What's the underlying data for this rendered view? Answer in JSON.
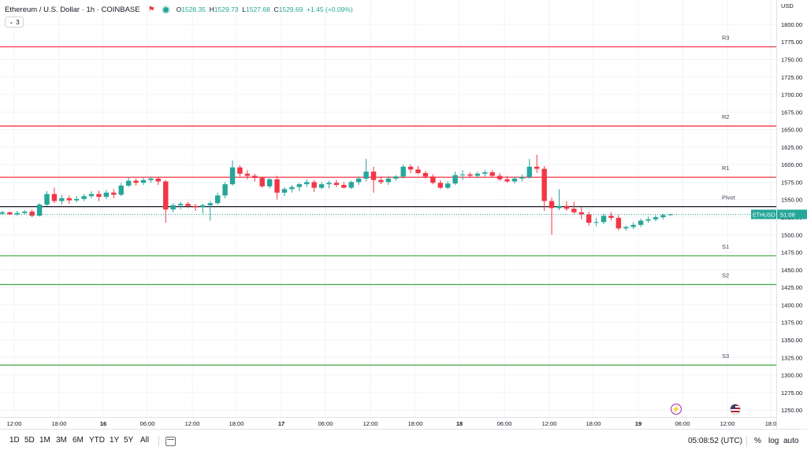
{
  "header": {
    "title": "Ethereum / U.S. Dollar · 1h · COINBASE",
    "ohlc": [
      {
        "k": "O",
        "v": "1528.35"
      },
      {
        "k": "H",
        "v": "1529.73"
      },
      {
        "k": "L",
        "v": "1527.68"
      },
      {
        "k": "C",
        "v": "1529.69"
      }
    ],
    "change": "+1.45 (+0.09%)",
    "indicator_count": "3"
  },
  "currency": "USD",
  "price_tag": {
    "symbol": "ETHUSD",
    "countdown": "51:08",
    "color": "#26a69a"
  },
  "colors": {
    "up": "#26a69a",
    "down": "#f23645",
    "resistance": "#f23645",
    "support": "#4caf50",
    "pivot": "#131722"
  },
  "chart_data": {
    "type": "candlestick",
    "ylim": [
      1240,
      1828
    ],
    "y_ticks": [
      1250,
      1275,
      1300,
      1325,
      1350,
      1375,
      1400,
      1425,
      1450,
      1475,
      1500,
      1525,
      1550,
      1575,
      1600,
      1625,
      1650,
      1675,
      1700,
      1725,
      1750,
      1775,
      1800
    ],
    "y_tick_labels": [
      "1250.00",
      "1275.00",
      "1300.00",
      "1325.00",
      "1350.00",
      "1375.00",
      "1400.00",
      "1425.00",
      "1450.00",
      "1475.00",
      "1500.00",
      "1525.00",
      "1550.00",
      "1575.00",
      "1600.00",
      "1625.00",
      "1650.00",
      "1675.00",
      "1700.00",
      "1725.00",
      "1750.00",
      "1775.00",
      "1800.00"
    ],
    "x_labels": [
      "12:00",
      "18:00",
      "16",
      "06:00",
      "12:00",
      "18:00",
      "17",
      "06:00",
      "12:00",
      "18:00",
      "18",
      "06:00",
      "12:00",
      "18:00",
      "19",
      "06:00",
      "12:00",
      "18:0"
    ],
    "x_label_bold": [
      "16",
      "17",
      "18",
      "19"
    ],
    "levels": [
      {
        "name": "R3",
        "value": 1768,
        "kind": "resistance"
      },
      {
        "name": "R2",
        "value": 1655,
        "kind": "resistance"
      },
      {
        "name": "R1",
        "value": 1582,
        "kind": "resistance"
      },
      {
        "name": "Pivot",
        "value": 1540,
        "kind": "pivot"
      },
      {
        "name": "S1",
        "value": 1470,
        "kind": "support"
      },
      {
        "name": "S2",
        "value": 1429,
        "kind": "support"
      },
      {
        "name": "S3",
        "value": 1314,
        "kind": "support"
      }
    ],
    "candles": [
      [
        1530,
        1534,
        1528,
        1532
      ],
      [
        1532,
        1533,
        1528,
        1529
      ],
      [
        1529,
        1534,
        1527,
        1531
      ],
      [
        1531,
        1535,
        1529,
        1533
      ],
      [
        1533,
        1536,
        1525,
        1527
      ],
      [
        1527,
        1545,
        1526,
        1543
      ],
      [
        1543,
        1562,
        1541,
        1558
      ],
      [
        1558,
        1567,
        1545,
        1548
      ],
      [
        1548,
        1557,
        1543,
        1552
      ],
      [
        1552,
        1556,
        1544,
        1549
      ],
      [
        1549,
        1555,
        1546,
        1551
      ],
      [
        1551,
        1558,
        1548,
        1555
      ],
      [
        1555,
        1562,
        1552,
        1558
      ],
      [
        1558,
        1563,
        1548,
        1554
      ],
      [
        1554,
        1564,
        1551,
        1560
      ],
      [
        1560,
        1565,
        1552,
        1557
      ],
      [
        1557,
        1574,
        1555,
        1570
      ],
      [
        1570,
        1582,
        1568,
        1577
      ],
      [
        1577,
        1580,
        1570,
        1574
      ],
      [
        1574,
        1581,
        1571,
        1578
      ],
      [
        1578,
        1583,
        1574,
        1580
      ],
      [
        1580,
        1582,
        1571,
        1576
      ],
      [
        1576,
        1578,
        1517,
        1536
      ],
      [
        1536,
        1545,
        1532,
        1542
      ],
      [
        1542,
        1547,
        1536,
        1544
      ],
      [
        1544,
        1547,
        1538,
        1541
      ],
      [
        1541,
        1544,
        1534,
        1539
      ],
      [
        1539,
        1544,
        1530,
        1542
      ],
      [
        1542,
        1548,
        1520,
        1545
      ],
      [
        1545,
        1560,
        1543,
        1556
      ],
      [
        1556,
        1575,
        1552,
        1572
      ],
      [
        1572,
        1606,
        1570,
        1596
      ],
      [
        1596,
        1599,
        1583,
        1587
      ],
      [
        1587,
        1592,
        1579,
        1584
      ],
      [
        1584,
        1587,
        1576,
        1581
      ],
      [
        1581,
        1583,
        1567,
        1569
      ],
      [
        1569,
        1581,
        1566,
        1579
      ],
      [
        1579,
        1584,
        1550,
        1560
      ],
      [
        1560,
        1568,
        1555,
        1565
      ],
      [
        1565,
        1571,
        1560,
        1568
      ],
      [
        1568,
        1574,
        1562,
        1572
      ],
      [
        1572,
        1579,
        1568,
        1575
      ],
      [
        1575,
        1578,
        1561,
        1567
      ],
      [
        1567,
        1575,
        1565,
        1572
      ],
      [
        1572,
        1577,
        1566,
        1574
      ],
      [
        1574,
        1578,
        1568,
        1571
      ],
      [
        1571,
        1575,
        1566,
        1567
      ],
      [
        1567,
        1577,
        1565,
        1575
      ],
      [
        1575,
        1583,
        1571,
        1580
      ],
      [
        1580,
        1608,
        1576,
        1590
      ],
      [
        1590,
        1597,
        1560,
        1578
      ],
      [
        1578,
        1583,
        1572,
        1575
      ],
      [
        1575,
        1584,
        1571,
        1580
      ],
      [
        1580,
        1585,
        1577,
        1583
      ],
      [
        1583,
        1600,
        1580,
        1597
      ],
      [
        1597,
        1600,
        1588,
        1593
      ],
      [
        1593,
        1598,
        1586,
        1588
      ],
      [
        1588,
        1591,
        1580,
        1583
      ],
      [
        1583,
        1586,
        1572,
        1574
      ],
      [
        1574,
        1578,
        1565,
        1567
      ],
      [
        1567,
        1576,
        1565,
        1573
      ],
      [
        1573,
        1590,
        1571,
        1585
      ],
      [
        1585,
        1592,
        1578,
        1586
      ],
      [
        1586,
        1589,
        1582,
        1584
      ],
      [
        1584,
        1590,
        1581,
        1587
      ],
      [
        1587,
        1592,
        1583,
        1589
      ],
      [
        1589,
        1592,
        1582,
        1584
      ],
      [
        1584,
        1588,
        1577,
        1579
      ],
      [
        1579,
        1584,
        1574,
        1576
      ],
      [
        1576,
        1583,
        1573,
        1580
      ],
      [
        1580,
        1586,
        1576,
        1582
      ],
      [
        1582,
        1608,
        1580,
        1597
      ],
      [
        1597,
        1614,
        1588,
        1594
      ],
      [
        1594,
        1598,
        1534,
        1548
      ],
      [
        1548,
        1553,
        1500,
        1538
      ],
      [
        1538,
        1565,
        1535,
        1541
      ],
      [
        1541,
        1548,
        1534,
        1537
      ],
      [
        1537,
        1547,
        1530,
        1532
      ],
      [
        1532,
        1540,
        1522,
        1529
      ],
      [
        1529,
        1533,
        1513,
        1517
      ],
      [
        1517,
        1524,
        1512,
        1518
      ],
      [
        1518,
        1530,
        1515,
        1527
      ],
      [
        1527,
        1532,
        1520,
        1524
      ],
      [
        1524,
        1528,
        1506,
        1509
      ],
      [
        1509,
        1513,
        1506,
        1511
      ],
      [
        1511,
        1518,
        1508,
        1514
      ],
      [
        1514,
        1523,
        1511,
        1520
      ],
      [
        1520,
        1526,
        1517,
        1522
      ],
      [
        1522,
        1528,
        1519,
        1525
      ],
      [
        1525,
        1530,
        1522,
        1528
      ],
      [
        1528,
        1530,
        1527,
        1529
      ]
    ]
  },
  "bottom": {
    "timeframes": [
      "1D",
      "5D",
      "1M",
      "3M",
      "6M",
      "YTD",
      "1Y",
      "5Y",
      "All"
    ],
    "clock": "05:08:52 (UTC)",
    "pct": "%",
    "log": "log",
    "auto": "auto"
  }
}
